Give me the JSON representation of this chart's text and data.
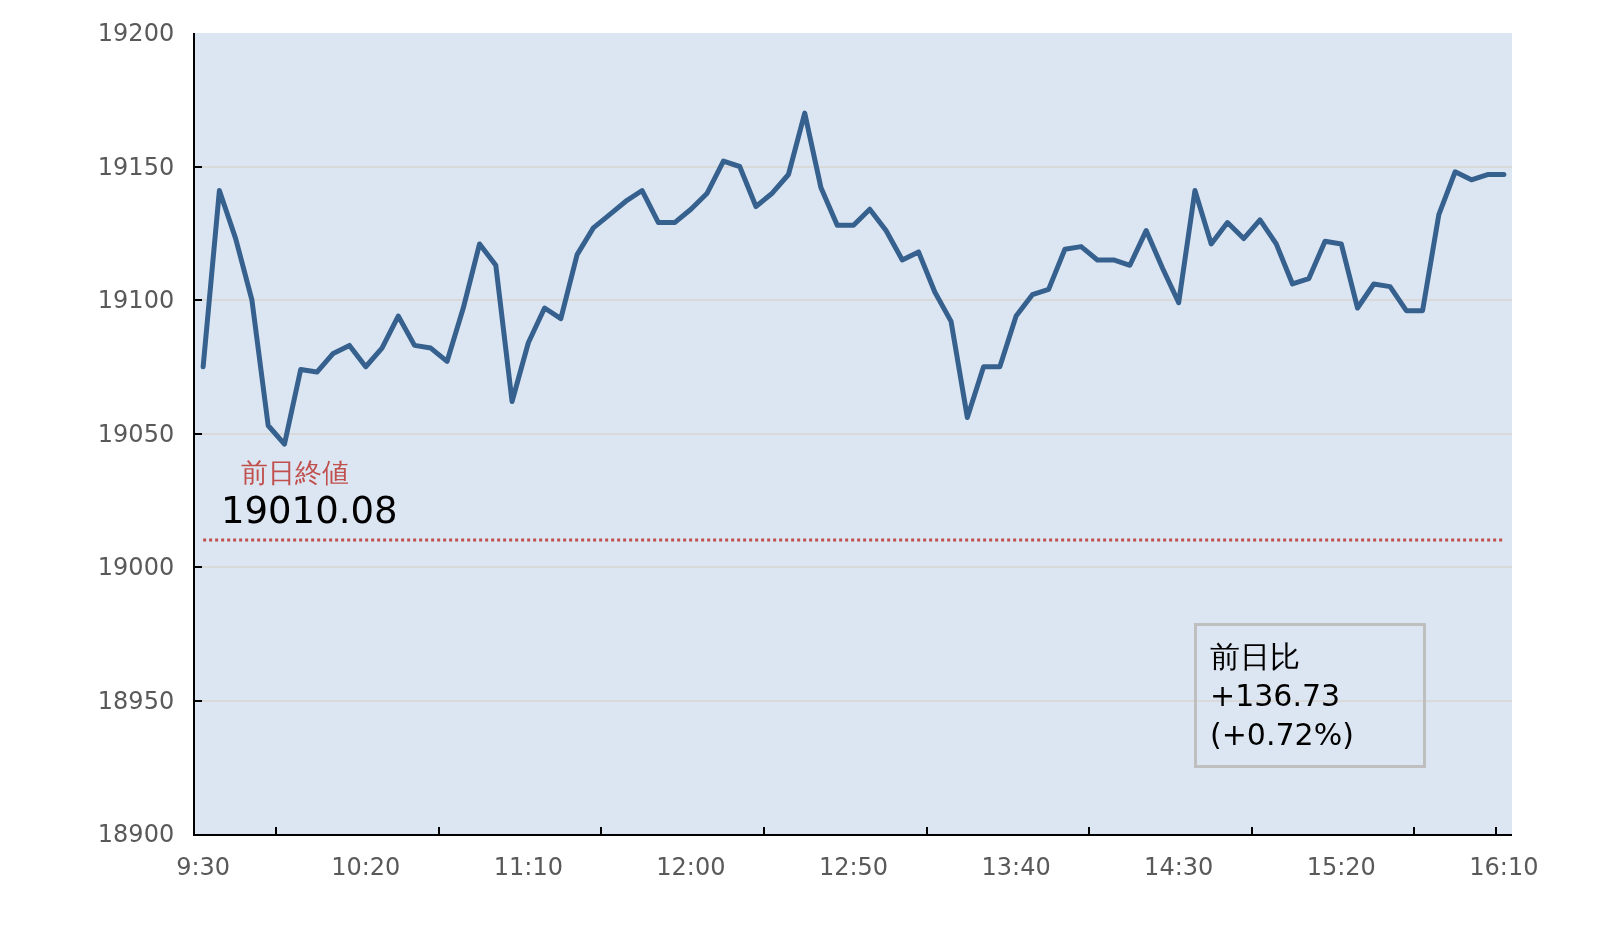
{
  "chart_data": {
    "type": "line",
    "x": [
      9.5,
      9.5833,
      9.6667,
      9.75,
      9.8333,
      9.9167,
      10,
      10.0833,
      10.1667,
      10.25,
      10.3333,
      10.4167,
      10.5,
      10.5833,
      10.6667,
      10.75,
      10.8333,
      10.9167,
      11,
      11.0833,
      11.1667,
      11.25,
      11.3333,
      11.4167,
      11.5,
      11.5833,
      11.6667,
      11.75,
      11.8333,
      11.9167,
      12,
      12.0833,
      12.1667,
      12.25,
      12.3333,
      12.4167,
      12.5,
      12.5833,
      12.6667,
      12.75,
      12.8333,
      12.9167,
      13,
      13.0833,
      13.1667,
      13.25,
      13.3333,
      13.4167,
      13.5,
      13.5833,
      13.6667,
      13.75,
      13.8333,
      13.9167,
      14,
      14.0833,
      14.1667,
      14.25,
      14.3333,
      14.4167,
      14.5,
      14.5833,
      14.6667,
      14.75,
      14.8333,
      14.9167,
      15,
      15.0833,
      15.1667,
      15.25,
      15.3333,
      15.4167,
      15.5,
      15.5833,
      15.6667,
      15.75,
      15.8333,
      15.9167,
      16,
      16.0833,
      16.1667
    ],
    "values": [
      19075,
      19141,
      19123,
      19100,
      19053,
      19046,
      19074,
      19073,
      19080,
      19083,
      19075,
      19082,
      19094,
      19083,
      19082,
      19077,
      19097,
      19121,
      19113,
      19062,
      19084,
      19097,
      19093,
      19117,
      19127,
      19132,
      19137,
      19141,
      19129,
      19129,
      19134,
      19140,
      19152,
      19150,
      19135,
      19140,
      19147,
      19170,
      19142,
      19128,
      19128,
      19134,
      19126,
      19115,
      19118,
      19103,
      19092,
      19056,
      19075,
      19075,
      19094,
      19102,
      19104,
      19119,
      19120,
      19115,
      19115,
      19113,
      19126,
      19112,
      19099,
      19141,
      19121,
      19129,
      19123,
      19130,
      19121,
      19106,
      19108,
      19122,
      19121,
      19097,
      19106,
      19105,
      19096,
      19096,
      19132,
      19148,
      19145,
      19147,
      19147
    ],
    "color": "#36618e",
    "line_style": "solid",
    "xlim": [
      9.4583,
      16.2083
    ],
    "xticks": [
      {
        "value": 9.5,
        "label": "9:30"
      },
      {
        "value": 9.875,
        "label": null
      },
      {
        "value": 10.3333,
        "label": "10:20"
      },
      {
        "value": 10.7083,
        "label": null
      },
      {
        "value": 11.1667,
        "label": "11:10"
      },
      {
        "value": 11.5417,
        "label": null
      },
      {
        "value": 12,
        "label": "12:00"
      },
      {
        "value": 12.375,
        "label": null
      },
      {
        "value": 12.8333,
        "label": "12:50"
      },
      {
        "value": 13.2083,
        "label": null
      },
      {
        "value": 13.6667,
        "label": "13:40"
      },
      {
        "value": 14.0417,
        "label": null
      },
      {
        "value": 14.5,
        "label": "14:30"
      },
      {
        "value": 14.875,
        "label": null
      },
      {
        "value": 15.3333,
        "label": "15:20"
      },
      {
        "value": 15.7083,
        "label": null
      },
      {
        "value": 16.125,
        "label": null
      },
      {
        "value": 16.1667,
        "label": "16:10"
      }
    ],
    "ylim": [
      18900,
      19200
    ],
    "yticks": [
      18900,
      18950,
      19000,
      19050,
      19100,
      19150,
      19200
    ],
    "grid": "y",
    "ref_lines": [
      {
        "axis": "y",
        "value": 19010.08,
        "label": "前日終値\n19010.08",
        "color": "#c0504d",
        "line_style": "dotted"
      }
    ],
    "annotations": [
      "前日比\n+136.73\n(+0.72%)"
    ]
  }
}
